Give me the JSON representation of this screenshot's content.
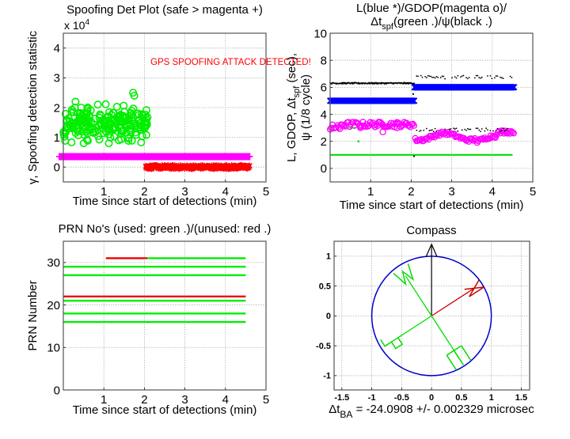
{
  "figure": {
    "panels": [
      "detection",
      "status",
      "prn",
      "compass"
    ]
  },
  "chart_data": [
    {
      "id": "detection",
      "type": "scatter",
      "title": "Spoofing Det Plot (safe > magenta +)",
      "xlabel": "Time since start of detections (min)",
      "ylabel": "γ, Spoofing detection statistic",
      "y_multiplier": "x 10",
      "y_multiplier_exp": "4",
      "xlim": [
        0,
        5
      ],
      "ylim": [
        -0.5,
        4.5
      ],
      "xticks": [
        1,
        2,
        3,
        4,
        5
      ],
      "yticks": [
        0,
        1,
        2,
        3,
        4
      ],
      "grid": true,
      "annotation": {
        "text": "GPS SPOOFING ATTACK DETECTED!",
        "color": "#ff0000",
        "x": 1.3,
        "y": 3.55
      },
      "series": [
        {
          "name": "safe detection statistic",
          "marker": "o",
          "color": "#00ee00",
          "x_range": [
            0.0,
            2.1
          ],
          "y_mean": 1.45,
          "y_spread": [
            0.8,
            2.5
          ],
          "count": 220
        },
        {
          "name": "threshold (magenta +)",
          "marker": "+",
          "color": "#ff00ff",
          "x_range": [
            -0.1,
            4.6
          ],
          "y": 0.35
        },
        {
          "name": "spoofed detection statistic",
          "marker": "*",
          "color": "#ff0000",
          "x_range": [
            2.0,
            4.6
          ],
          "y_mean": 0.0,
          "y_spread": [
            -0.08,
            0.08
          ]
        }
      ]
    },
    {
      "id": "status",
      "type": "scatter",
      "title_line1": "L(blue *)/GDOP(magenta o)/",
      "title_line2_pre": "Δt",
      "title_line2_sub": "spf",
      "title_line2_post": "(green .)/ψ(black .)",
      "xlabel": "Time since start of detections (min)",
      "ylabel_line1_pre": "L, GDOP, Δt",
      "ylabel_line1_sub": "spf",
      "ylabel_line1_post": " (sec),",
      "ylabel_line2": "ψ (1/8 cycle)",
      "xlim": [
        0,
        5
      ],
      "ylim": [
        -1,
        10
      ],
      "xticks": [
        1,
        2,
        3,
        4,
        5
      ],
      "yticks": [
        0,
        2,
        4,
        6,
        8,
        10
      ],
      "grid": true,
      "series": [
        {
          "name": "L",
          "marker": "*",
          "color": "#0000ff",
          "segments": [
            {
              "x_range": [
                0.0,
                2.08
              ],
              "y": 5.0
            },
            {
              "x_range": [
                2.08,
                4.55
              ],
              "y": 6.0
            }
          ]
        },
        {
          "name": "GDOP",
          "marker": "o",
          "color": "#ff00ff",
          "segments": [
            {
              "x_range": [
                0.0,
                2.08
              ],
              "y": 3.4
            },
            {
              "x_range": [
                2.1,
                4.55
              ],
              "y": 2.35
            }
          ]
        },
        {
          "name": "dt_spf",
          "marker": ".",
          "color": "#00dd00",
          "segments": [
            {
              "x_range": [
                0.0,
                4.5
              ],
              "y": 1.0
            }
          ],
          "outliers": [
            [
              0.5,
              3.0
            ],
            [
              0.6,
              3.0
            ],
            [
              0.7,
              2.0
            ]
          ]
        },
        {
          "name": "psi",
          "marker": ".",
          "color": "#000000",
          "segments": [
            {
              "x_range": [
                0.0,
                2.08
              ],
              "y": 6.3
            },
            {
              "x_range": [
                2.1,
                4.5
              ],
              "y": 6.75
            },
            {
              "x_range": [
                2.1,
                4.5
              ],
              "y": 2.85
            }
          ],
          "outliers": [
            [
              2.05,
              5.5
            ],
            [
              2.07,
              0.9
            ]
          ]
        }
      ]
    },
    {
      "id": "prn",
      "type": "scatter",
      "title": "PRN No's (used: green .)/(unused: red .)",
      "xlabel": "Time since start of detections (min)",
      "ylabel": "PRN Number",
      "xlim": [
        0,
        5
      ],
      "ylim": [
        0,
        35
      ],
      "xticks": [
        1,
        2,
        3,
        4,
        5
      ],
      "yticks": [
        0,
        10,
        20,
        30
      ],
      "grid": true,
      "series": [
        {
          "prn": 31,
          "segments": [
            {
              "x_range": [
                1.05,
                2.07
              ],
              "status": "unused"
            },
            {
              "x_range": [
                2.07,
                4.5
              ],
              "status": "used"
            }
          ]
        },
        {
          "prn": 29,
          "segments": [
            {
              "x_range": [
                0.0,
                4.5
              ],
              "status": "used"
            }
          ]
        },
        {
          "prn": 27,
          "segments": [
            {
              "x_range": [
                0.0,
                4.5
              ],
              "status": "used"
            }
          ]
        },
        {
          "prn": 22,
          "segments": [
            {
              "x_range": [
                0.0,
                4.5
              ],
              "status": "unused"
            }
          ]
        },
        {
          "prn": 21,
          "segments": [
            {
              "x_range": [
                0.0,
                4.5
              ],
              "status": "used"
            }
          ]
        },
        {
          "prn": 18,
          "segments": [
            {
              "x_range": [
                0.0,
                4.5
              ],
              "status": "used"
            }
          ]
        },
        {
          "prn": 16,
          "segments": [
            {
              "x_range": [
                0.0,
                4.5
              ],
              "status": "used"
            }
          ]
        }
      ],
      "colors": {
        "used": "#00ee00",
        "unused": "#ee0000"
      }
    },
    {
      "id": "compass",
      "type": "line",
      "title": "Compass",
      "xlim": [
        -1.63,
        1.64
      ],
      "ylim": [
        -1.24,
        1.25
      ],
      "xticks": [
        -1.5,
        -1,
        -0.5,
        0,
        0.5,
        1,
        1.5
      ],
      "xticklabels": [
        "-1.5",
        "-1",
        "-0.5",
        "0",
        "0.5",
        "1",
        "1.5"
      ],
      "yticks": [
        -1,
        -0.5,
        0,
        0.5,
        1
      ],
      "yticklabels": [
        "-1",
        "-0.5",
        "0",
        "0.5",
        "1"
      ],
      "grid": true,
      "circle": {
        "radius": 1.0,
        "color": "#0000cc"
      },
      "north_arrow": {
        "length": 1.2,
        "color": "#000000"
      },
      "needles": [
        {
          "label": "N",
          "angle_deg": 33,
          "length": 0.85,
          "color": "#cc0000"
        },
        {
          "label": "W",
          "angle_deg": 123,
          "length": 0.8,
          "color": "#00dd00"
        },
        {
          "label": "S",
          "angle_deg": 213,
          "length": 0.8,
          "color": "#00dd00"
        },
        {
          "label": "E",
          "angle_deg": 303,
          "length": 0.85,
          "color": "#00dd00"
        }
      ],
      "xlabel_pre": "Δt",
      "xlabel_sub": "BA",
      "xlabel_post": " = -24.0908 +/- 0.002329 microsec"
    }
  ]
}
